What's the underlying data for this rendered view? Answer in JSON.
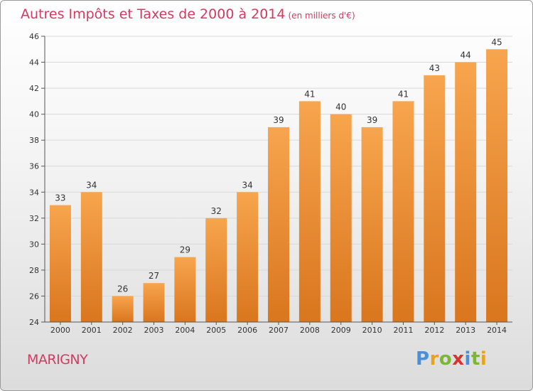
{
  "title": {
    "main": "Autres Impôts et Taxes de 2000 à 2014",
    "unit": "(en milliers d'€)"
  },
  "place": "MARIGNY",
  "logo": {
    "letters": [
      "P",
      "r",
      "o",
      "x",
      "i",
      "t",
      "i"
    ],
    "colors": [
      "#4a90d9",
      "#e8a21c",
      "#7cb82f",
      "#d9332b",
      "#4a90d9",
      "#7cb82f",
      "#e8a21c"
    ]
  },
  "colors": {
    "bar_light": "#f7a54e",
    "bar_dark": "#d9761e",
    "title": "#d43a60",
    "grid": "#d9d9d9"
  },
  "chart_data": {
    "type": "bar",
    "categories": [
      "2000",
      "2001",
      "2002",
      "2003",
      "2004",
      "2005",
      "2006",
      "2007",
      "2008",
      "2009",
      "2010",
      "2011",
      "2012",
      "2013",
      "2014"
    ],
    "values": [
      33,
      34,
      26,
      27,
      29,
      32,
      34,
      39,
      41,
      40,
      39,
      41,
      43,
      44,
      45
    ],
    "title": "Autres Impôts et Taxes de 2000 à 2014",
    "xlabel": "",
    "ylabel": "",
    "ylim": [
      24,
      46
    ],
    "yticks": [
      24,
      26,
      28,
      30,
      32,
      34,
      36,
      38,
      40,
      42,
      44,
      46
    ],
    "grid": true
  }
}
